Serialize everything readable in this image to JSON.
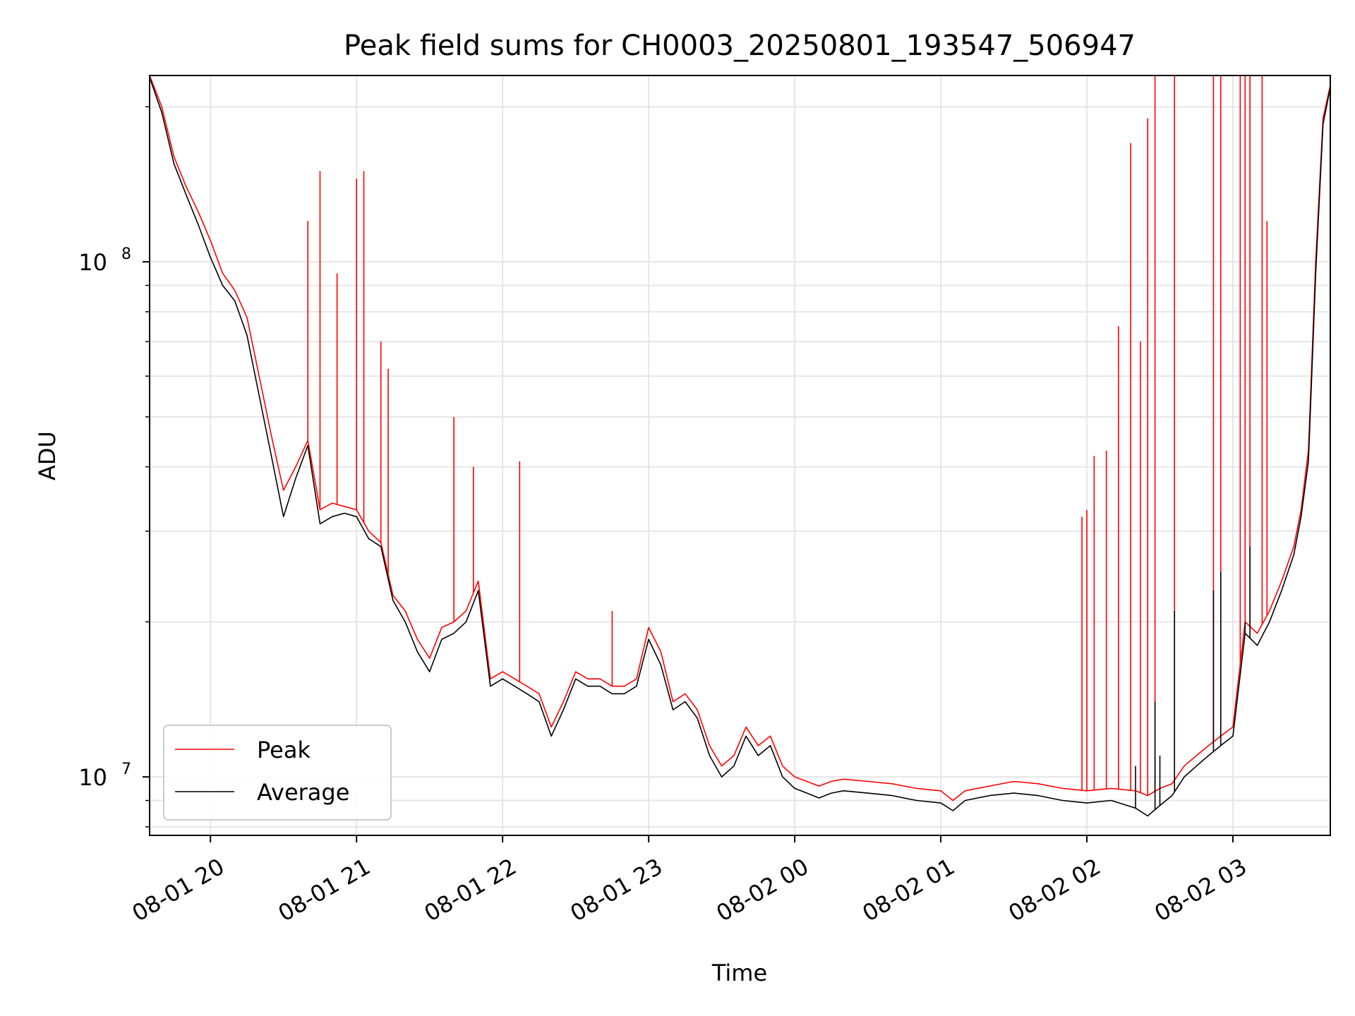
{
  "chart_data": {
    "type": "line",
    "title": "Peak field sums for CH0003_20250801_193547_506947",
    "xlabel": "Time",
    "ylabel": "ADU",
    "yscale": "log",
    "xlim": [
      "2025-08-01 19:35",
      "2025-08-02 03:40"
    ],
    "ylim": [
      7700000,
      230000000
    ],
    "x_ticks": [
      {
        "t": "2025-08-01 20:00",
        "label": "08-01 20"
      },
      {
        "t": "2025-08-01 21:00",
        "label": "08-01 21"
      },
      {
        "t": "2025-08-01 22:00",
        "label": "08-01 22"
      },
      {
        "t": "2025-08-01 23:00",
        "label": "08-01 23"
      },
      {
        "t": "2025-08-02 00:00",
        "label": "08-02 00"
      },
      {
        "t": "2025-08-02 01:00",
        "label": "08-02 01"
      },
      {
        "t": "2025-08-02 02:00",
        "label": "08-02 02"
      },
      {
        "t": "2025-08-02 03:00",
        "label": "08-02 03"
      }
    ],
    "y_ticks": [
      {
        "value": 10000000,
        "base": "10",
        "exp": "7"
      },
      {
        "value": 100000000,
        "base": "10",
        "exp": "8"
      }
    ],
    "grid": true,
    "legend_position": "lower-left",
    "series": [
      {
        "name": "Peak",
        "color": "#ff0000",
        "x": [
          "2025-08-01 19:35",
          "2025-08-01 19:40",
          "2025-08-01 19:45",
          "2025-08-01 19:50",
          "2025-08-01 19:55",
          "2025-08-01 20:00",
          "2025-08-01 20:05",
          "2025-08-01 20:10",
          "2025-08-01 20:15",
          "2025-08-01 20:20",
          "2025-08-01 20:25",
          "2025-08-01 20:30",
          "2025-08-01 20:35",
          "2025-08-01 20:40",
          "2025-08-01 20:45",
          "2025-08-01 20:50",
          "2025-08-01 20:55",
          "2025-08-01 21:00",
          "2025-08-01 21:05",
          "2025-08-01 21:10",
          "2025-08-01 21:15",
          "2025-08-01 21:20",
          "2025-08-01 21:25",
          "2025-08-01 21:30",
          "2025-08-01 21:35",
          "2025-08-01 21:40",
          "2025-08-01 21:45",
          "2025-08-01 21:50",
          "2025-08-01 21:55",
          "2025-08-01 22:00",
          "2025-08-01 22:05",
          "2025-08-01 22:10",
          "2025-08-01 22:15",
          "2025-08-01 22:20",
          "2025-08-01 22:25",
          "2025-08-01 22:30",
          "2025-08-01 22:35",
          "2025-08-01 22:40",
          "2025-08-01 22:45",
          "2025-08-01 22:50",
          "2025-08-01 22:55",
          "2025-08-01 23:00",
          "2025-08-01 23:05",
          "2025-08-01 23:10",
          "2025-08-01 23:15",
          "2025-08-01 23:20",
          "2025-08-01 23:25",
          "2025-08-01 23:30",
          "2025-08-01 23:35",
          "2025-08-01 23:40",
          "2025-08-01 23:45",
          "2025-08-01 23:50",
          "2025-08-01 23:55",
          "2025-08-02 00:00",
          "2025-08-02 00:05",
          "2025-08-02 00:10",
          "2025-08-02 00:15",
          "2025-08-02 00:20",
          "2025-08-02 00:30",
          "2025-08-02 00:40",
          "2025-08-02 00:50",
          "2025-08-02 01:00",
          "2025-08-02 01:05",
          "2025-08-02 01:10",
          "2025-08-02 01:20",
          "2025-08-02 01:30",
          "2025-08-02 01:40",
          "2025-08-02 01:50",
          "2025-08-02 02:00",
          "2025-08-02 02:10",
          "2025-08-02 02:20",
          "2025-08-02 02:25",
          "2025-08-02 02:30",
          "2025-08-02 02:35",
          "2025-08-02 02:40",
          "2025-08-02 02:45",
          "2025-08-02 02:50",
          "2025-08-02 02:55",
          "2025-08-02 03:00",
          "2025-08-02 03:05",
          "2025-08-02 03:10",
          "2025-08-02 03:15",
          "2025-08-02 03:20",
          "2025-08-02 03:25",
          "2025-08-02 03:28",
          "2025-08-02 03:31",
          "2025-08-02 03:34",
          "2025-08-02 03:37",
          "2025-08-02 03:40"
        ],
        "values": [
          230000000,
          200000000,
          160000000,
          140000000,
          125000000,
          110000000,
          95000000,
          88000000,
          78000000,
          60000000,
          46000000,
          36000000,
          40000000,
          45000000,
          33000000,
          34000000,
          33500000,
          33000000,
          30000000,
          28500000,
          22500000,
          21000000,
          18500000,
          17000000,
          19500000,
          20000000,
          21000000,
          24000000,
          15500000,
          16000000,
          15500000,
          15000000,
          14500000,
          12500000,
          14000000,
          16000000,
          15500000,
          15500000,
          15000000,
          15000000,
          15500000,
          19500000,
          17500000,
          14000000,
          14500000,
          13500000,
          11500000,
          10500000,
          11000000,
          12500000,
          11500000,
          12000000,
          10500000,
          10000000,
          9800000,
          9600000,
          9800000,
          9900000,
          9800000,
          9700000,
          9500000,
          9400000,
          9000000,
          9400000,
          9600000,
          9800000,
          9700000,
          9500000,
          9400000,
          9500000,
          9400000,
          9200000,
          9500000,
          9700000,
          10500000,
          11000000,
          11500000,
          12000000,
          12500000,
          20000000,
          19000000,
          21000000,
          24000000,
          28000000,
          33000000,
          43000000,
          100000000,
          190000000,
          220000000
        ],
        "spikes": [
          {
            "t": "2025-08-01 20:40",
            "value": 120000000
          },
          {
            "t": "2025-08-01 20:45",
            "value": 150000000
          },
          {
            "t": "2025-08-01 20:52",
            "value": 95000000
          },
          {
            "t": "2025-08-01 21:00",
            "value": 145000000
          },
          {
            "t": "2025-08-01 21:03",
            "value": 150000000
          },
          {
            "t": "2025-08-01 21:10",
            "value": 70000000
          },
          {
            "t": "2025-08-01 21:13",
            "value": 62000000
          },
          {
            "t": "2025-08-01 21:40",
            "value": 50000000
          },
          {
            "t": "2025-08-01 21:48",
            "value": 40000000
          },
          {
            "t": "2025-08-01 22:07",
            "value": 41000000
          },
          {
            "t": "2025-08-01 22:45",
            "value": 21000000
          },
          {
            "t": "2025-08-02 01:58",
            "value": 32000000
          },
          {
            "t": "2025-08-02 02:00",
            "value": 33000000
          },
          {
            "t": "2025-08-02 02:03",
            "value": 42000000
          },
          {
            "t": "2025-08-02 02:08",
            "value": 43000000
          },
          {
            "t": "2025-08-02 02:13",
            "value": 75000000
          },
          {
            "t": "2025-08-02 02:18",
            "value": 170000000
          },
          {
            "t": "2025-08-02 02:22",
            "value": 70000000
          },
          {
            "t": "2025-08-02 02:25",
            "value": 190000000
          },
          {
            "t": "2025-08-02 02:28",
            "value": 230000000
          },
          {
            "t": "2025-08-02 02:36",
            "value": 230000000
          },
          {
            "t": "2025-08-02 02:52",
            "value": 230000000
          },
          {
            "t": "2025-08-02 02:55",
            "value": 230000000
          },
          {
            "t": "2025-08-02 03:03",
            "value": 230000000
          },
          {
            "t": "2025-08-02 03:05",
            "value": 230000000
          },
          {
            "t": "2025-08-02 03:07",
            "value": 230000000
          },
          {
            "t": "2025-08-02 03:12",
            "value": 230000000
          },
          {
            "t": "2025-08-02 03:14",
            "value": 120000000
          }
        ]
      },
      {
        "name": "Average",
        "color": "#000000",
        "x": [
          "2025-08-01 19:35",
          "2025-08-01 19:40",
          "2025-08-01 19:45",
          "2025-08-01 19:50",
          "2025-08-01 19:55",
          "2025-08-01 20:00",
          "2025-08-01 20:05",
          "2025-08-01 20:10",
          "2025-08-01 20:15",
          "2025-08-01 20:20",
          "2025-08-01 20:25",
          "2025-08-01 20:30",
          "2025-08-01 20:35",
          "2025-08-01 20:40",
          "2025-08-01 20:45",
          "2025-08-01 20:50",
          "2025-08-01 20:55",
          "2025-08-01 21:00",
          "2025-08-01 21:05",
          "2025-08-01 21:10",
          "2025-08-01 21:15",
          "2025-08-01 21:20",
          "2025-08-01 21:25",
          "2025-08-01 21:30",
          "2025-08-01 21:35",
          "2025-08-01 21:40",
          "2025-08-01 21:45",
          "2025-08-01 21:50",
          "2025-08-01 21:55",
          "2025-08-01 22:00",
          "2025-08-01 22:05",
          "2025-08-01 22:10",
          "2025-08-01 22:15",
          "2025-08-01 22:20",
          "2025-08-01 22:25",
          "2025-08-01 22:30",
          "2025-08-01 22:35",
          "2025-08-01 22:40",
          "2025-08-01 22:45",
          "2025-08-01 22:50",
          "2025-08-01 22:55",
          "2025-08-01 23:00",
          "2025-08-01 23:05",
          "2025-08-01 23:10",
          "2025-08-01 23:15",
          "2025-08-01 23:20",
          "2025-08-01 23:25",
          "2025-08-01 23:30",
          "2025-08-01 23:35",
          "2025-08-01 23:40",
          "2025-08-01 23:45",
          "2025-08-01 23:50",
          "2025-08-01 23:55",
          "2025-08-02 00:00",
          "2025-08-02 00:05",
          "2025-08-02 00:10",
          "2025-08-02 00:15",
          "2025-08-02 00:20",
          "2025-08-02 00:30",
          "2025-08-02 00:40",
          "2025-08-02 00:50",
          "2025-08-02 01:00",
          "2025-08-02 01:05",
          "2025-08-02 01:10",
          "2025-08-02 01:20",
          "2025-08-02 01:30",
          "2025-08-02 01:40",
          "2025-08-02 01:50",
          "2025-08-02 02:00",
          "2025-08-02 02:10",
          "2025-08-02 02:20",
          "2025-08-02 02:25",
          "2025-08-02 02:30",
          "2025-08-02 02:35",
          "2025-08-02 02:40",
          "2025-08-02 02:45",
          "2025-08-02 02:50",
          "2025-08-02 02:55",
          "2025-08-02 03:00",
          "2025-08-02 03:05",
          "2025-08-02 03:10",
          "2025-08-02 03:15",
          "2025-08-02 03:20",
          "2025-08-02 03:25",
          "2025-08-02 03:28",
          "2025-08-02 03:31",
          "2025-08-02 03:34",
          "2025-08-02 03:37",
          "2025-08-02 03:40"
        ],
        "values": [
          228000000,
          195000000,
          155000000,
          135000000,
          118000000,
          102000000,
          90000000,
          84000000,
          72000000,
          55000000,
          42000000,
          32000000,
          38000000,
          44000000,
          31000000,
          32000000,
          32500000,
          32000000,
          29000000,
          28000000,
          22000000,
          20000000,
          17500000,
          16000000,
          18500000,
          19000000,
          20000000,
          23000000,
          15000000,
          15500000,
          15000000,
          14500000,
          14000000,
          12000000,
          13500000,
          15500000,
          15000000,
          15000000,
          14500000,
          14500000,
          15000000,
          18500000,
          16500000,
          13500000,
          14000000,
          13000000,
          11000000,
          10000000,
          10500000,
          12000000,
          11000000,
          11500000,
          10000000,
          9500000,
          9300000,
          9100000,
          9300000,
          9400000,
          9300000,
          9200000,
          9000000,
          8900000,
          8600000,
          9000000,
          9200000,
          9300000,
          9200000,
          9000000,
          8900000,
          9000000,
          8700000,
          8400000,
          8800000,
          9200000,
          10000000,
          10500000,
          11000000,
          11500000,
          12000000,
          19000000,
          18000000,
          20000000,
          23000000,
          27000000,
          32000000,
          41000000,
          95000000,
          185000000,
          218000000
        ],
        "spikes": [
          {
            "t": "2025-08-02 02:20",
            "value": 10500000
          },
          {
            "t": "2025-08-02 02:28",
            "value": 14000000
          },
          {
            "t": "2025-08-02 02:30",
            "value": 11000000
          },
          {
            "t": "2025-08-02 02:36",
            "value": 21000000
          },
          {
            "t": "2025-08-02 02:52",
            "value": 23000000
          },
          {
            "t": "2025-08-02 02:55",
            "value": 25000000
          },
          {
            "t": "2025-08-02 03:05",
            "value": 20000000
          },
          {
            "t": "2025-08-02 03:07",
            "value": 28000000
          }
        ]
      }
    ]
  }
}
